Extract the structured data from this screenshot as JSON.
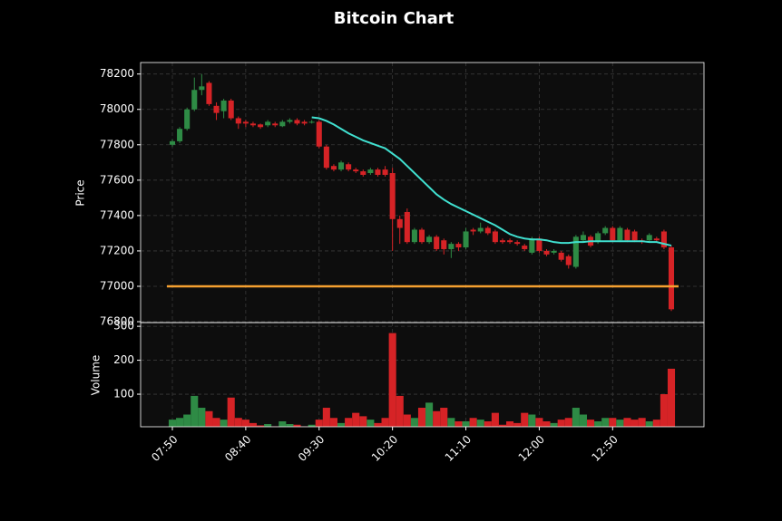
{
  "chart_data": [
    {
      "type": "candlestick",
      "title": "Bitcoin Chart",
      "y_label": "Price",
      "categories": [
        "07:50",
        null,
        null,
        null,
        null,
        null,
        null,
        null,
        null,
        null,
        "08:40",
        null,
        null,
        null,
        null,
        null,
        null,
        null,
        null,
        null,
        "09:30",
        null,
        null,
        null,
        null,
        null,
        null,
        null,
        null,
        null,
        "10:20",
        null,
        null,
        null,
        null,
        null,
        null,
        null,
        null,
        null,
        "11:10",
        null,
        null,
        null,
        null,
        null,
        null,
        null,
        null,
        null,
        "12:00",
        null,
        null,
        null,
        null,
        null,
        null,
        null,
        null,
        null,
        "12:50",
        null,
        null,
        null,
        null,
        null,
        null,
        null,
        null
      ],
      "open": [
        77800,
        77820,
        77890,
        78000,
        78110,
        78150,
        78020,
        77990,
        78050,
        77950,
        77930,
        77920,
        77915,
        77910,
        77920,
        77905,
        77930,
        77940,
        77930,
        77925,
        77930,
        77790,
        77680,
        77660,
        77690,
        77660,
        77650,
        77640,
        77660,
        77660,
        77640,
        77380,
        77420,
        77250,
        77320,
        77250,
        77280,
        77260,
        77210,
        77240,
        77220,
        77320,
        77310,
        77330,
        77310,
        77260,
        77260,
        77250,
        77230,
        77190,
        77270,
        77200,
        77190,
        77190,
        77170,
        77110,
        77260,
        77280,
        77250,
        77300,
        77330,
        77260,
        77320,
        77310,
        77260,
        77260,
        77270,
        77310,
        77220
      ],
      "high": [
        77830,
        77900,
        78010,
        78180,
        78200,
        78160,
        78040,
        78060,
        78060,
        77960,
        77940,
        77930,
        77920,
        77940,
        77930,
        77940,
        77950,
        77950,
        77940,
        77940,
        77940,
        77800,
        77690,
        77710,
        77700,
        77670,
        77660,
        77670,
        77670,
        77680,
        77670,
        77400,
        77440,
        77330,
        77330,
        77290,
        77290,
        77270,
        77250,
        77250,
        77330,
        77330,
        77360,
        77340,
        77320,
        77270,
        77270,
        77260,
        77240,
        77280,
        77280,
        77210,
        77210,
        77200,
        77180,
        77290,
        77310,
        77290,
        77310,
        77340,
        77340,
        77340,
        77330,
        77320,
        77270,
        77300,
        77280,
        77320,
        77230
      ],
      "low": [
        77790,
        77810,
        77880,
        77990,
        78080,
        78020,
        77940,
        77950,
        77940,
        77890,
        77900,
        77900,
        77890,
        77900,
        77900,
        77900,
        77920,
        77910,
        77910,
        77920,
        77780,
        77660,
        77650,
        77650,
        77650,
        77640,
        77620,
        77630,
        77620,
        77620,
        77200,
        77240,
        77240,
        77240,
        77240,
        77240,
        77200,
        77180,
        77160,
        77200,
        77210,
        77290,
        77300,
        77290,
        77240,
        77240,
        77240,
        77230,
        77200,
        77180,
        77190,
        77170,
        77180,
        77140,
        77100,
        77100,
        77250,
        77220,
        77240,
        77290,
        77250,
        77250,
        77250,
        77250,
        77240,
        77250,
        77250,
        77210,
        76860
      ],
      "close": [
        77820,
        77890,
        78000,
        78110,
        78130,
        78030,
        77980,
        78050,
        77950,
        77920,
        77920,
        77910,
        77900,
        77930,
        77910,
        77930,
        77940,
        77920,
        77920,
        77930,
        77790,
        77670,
        77660,
        77700,
        77660,
        77650,
        77630,
        77660,
        77630,
        77630,
        77380,
        77330,
        77250,
        77320,
        77250,
        77280,
        77210,
        77210,
        77240,
        77220,
        77310,
        77310,
        77330,
        77300,
        77250,
        77250,
        77250,
        77240,
        77210,
        77270,
        77200,
        77180,
        77200,
        77150,
        77120,
        77280,
        77290,
        77230,
        77300,
        77330,
        77260,
        77330,
        77260,
        77260,
        77250,
        77290,
        77260,
        77220,
        76870
      ],
      "up_color": "#2e8b45",
      "down_color": "#d62326",
      "moving_average": {
        "color": "#40e0d0",
        "values": [
          null,
          null,
          null,
          null,
          null,
          null,
          null,
          null,
          null,
          null,
          null,
          null,
          null,
          null,
          null,
          null,
          null,
          null,
          null,
          77955,
          77950,
          77935,
          77915,
          77890,
          77865,
          77845,
          77825,
          77810,
          77795,
          77780,
          77750,
          77720,
          77680,
          77640,
          77600,
          77560,
          77520,
          77490,
          77465,
          77445,
          77425,
          77405,
          77385,
          77365,
          77345,
          77320,
          77295,
          77280,
          77270,
          77265,
          77265,
          77260,
          77250,
          77245,
          77245,
          77250,
          77250,
          77255,
          77255,
          77255,
          77255,
          77255,
          77255,
          77255,
          77255,
          77250,
          77250,
          77240,
          77230
        ]
      },
      "hline": {
        "value": 77000,
        "color": "#f5a030"
      },
      "ylim": [
        76795,
        78265
      ],
      "yticks": [
        76800,
        77000,
        77200,
        77400,
        77600,
        77800,
        78000,
        78200
      ],
      "grid": true
    },
    {
      "type": "bar",
      "y_label": "Volume",
      "values": [
        25,
        30,
        40,
        95,
        60,
        50,
        30,
        25,
        90,
        30,
        25,
        15,
        8,
        12,
        5,
        20,
        12,
        10,
        5,
        10,
        25,
        60,
        30,
        15,
        30,
        45,
        35,
        25,
        15,
        30,
        280,
        95,
        40,
        30,
        60,
        75,
        50,
        60,
        30,
        20,
        20,
        30,
        25,
        20,
        45,
        10,
        20,
        15,
        45,
        40,
        30,
        20,
        15,
        25,
        30,
        60,
        40,
        25,
        20,
        30,
        30,
        25,
        30,
        25,
        30,
        20,
        25,
        100,
        175
      ],
      "ylim": [
        4,
        311
      ],
      "yticks": [
        100,
        200,
        300
      ],
      "grid": true
    }
  ]
}
